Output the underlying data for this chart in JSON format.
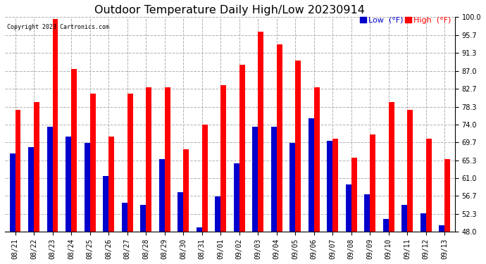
{
  "title": "Outdoor Temperature Daily High/Low 20230914",
  "copyright": "Copyright 2023 Cartronics.com",
  "legend_low": "Low  (°F)",
  "legend_high": "High  (°F)",
  "dates": [
    "08/21",
    "08/22",
    "08/23",
    "08/24",
    "08/25",
    "08/26",
    "08/27",
    "08/28",
    "08/29",
    "08/30",
    "08/31",
    "09/01",
    "09/02",
    "09/03",
    "09/04",
    "09/05",
    "09/06",
    "09/07",
    "09/08",
    "09/09",
    "09/10",
    "09/11",
    "09/12",
    "09/13"
  ],
  "highs": [
    77.5,
    79.5,
    99.5,
    87.5,
    81.5,
    71.0,
    81.5,
    83.0,
    83.0,
    68.0,
    74.0,
    83.5,
    88.5,
    96.5,
    93.5,
    89.5,
    83.0,
    70.5,
    66.0,
    71.5,
    79.5,
    77.5,
    70.5,
    65.5
  ],
  "lows": [
    67.0,
    68.5,
    73.5,
    71.0,
    69.5,
    61.5,
    55.0,
    54.5,
    65.5,
    57.5,
    49.0,
    56.5,
    64.5,
    73.5,
    73.5,
    69.5,
    75.5,
    70.0,
    59.5,
    57.0,
    51.0,
    54.5,
    52.5,
    49.5
  ],
  "high_color": "#ff0000",
  "low_color": "#0000cc",
  "background": "#ffffff",
  "grid_color": "#b0b0b0",
  "ylim_min": 48.0,
  "ylim_max": 100.0,
  "yticks": [
    48.0,
    52.3,
    56.7,
    61.0,
    65.3,
    69.7,
    74.0,
    78.3,
    82.7,
    87.0,
    91.3,
    95.7,
    100.0
  ],
  "bar_width": 0.3,
  "title_fontsize": 11.5,
  "tick_fontsize": 7,
  "legend_fontsize": 8
}
